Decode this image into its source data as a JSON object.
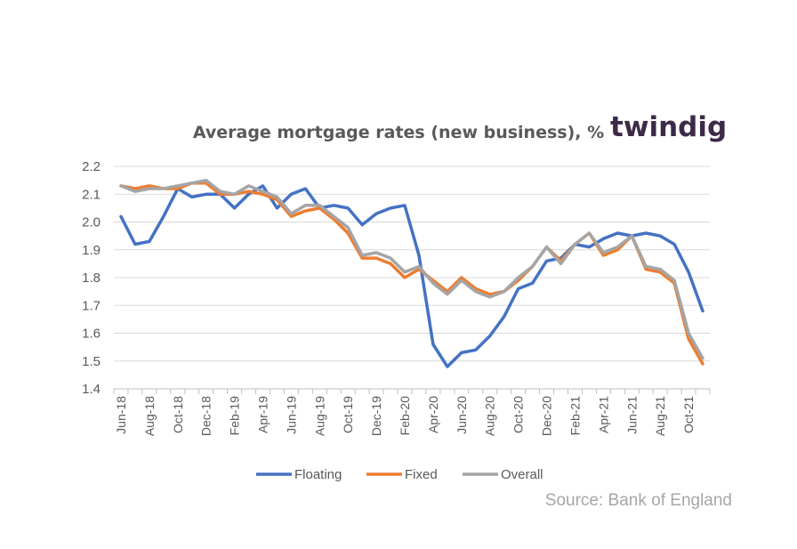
{
  "chart_data": {
    "type": "line",
    "title": "Average mortgage rates (new business), %",
    "brand": "twindig",
    "source": "Source: Bank of England",
    "xlabel": "",
    "ylabel": "",
    "ylim": [
      1.4,
      2.2
    ],
    "yticks": [
      "2.2",
      "2.1",
      "2.0",
      "1.9",
      "1.8",
      "1.7",
      "1.6",
      "1.5",
      "1.4"
    ],
    "grid": true,
    "legend_position": "bottom",
    "x": [
      "Jun-18",
      "Jul-18",
      "Aug-18",
      "Sep-18",
      "Oct-18",
      "Nov-18",
      "Dec-18",
      "Jan-19",
      "Feb-19",
      "Mar-19",
      "Apr-19",
      "May-19",
      "Jun-19",
      "Jul-19",
      "Aug-19",
      "Sep-19",
      "Oct-19",
      "Nov-19",
      "Dec-19",
      "Jan-20",
      "Feb-20",
      "Mar-20",
      "Apr-20",
      "May-20",
      "Jun-20",
      "Jul-20",
      "Aug-20",
      "Sep-20",
      "Oct-20",
      "Nov-20",
      "Dec-20",
      "Jan-21",
      "Feb-21",
      "Mar-21",
      "Apr-21",
      "May-21",
      "Jun-21",
      "Jul-21",
      "Aug-21",
      "Sep-21",
      "Oct-21",
      "Nov-21"
    ],
    "x_tick_labels": [
      "Jun-18",
      "Aug-18",
      "Oct-18",
      "Dec-18",
      "Feb-19",
      "Apr-19",
      "Jun-19",
      "Aug-19",
      "Oct-19",
      "Dec-19",
      "Feb-20",
      "Apr-20",
      "Jun-20",
      "Aug-20",
      "Oct-20",
      "Dec-20",
      "Feb-21",
      "Apr-21",
      "Jun-21",
      "Aug-21",
      "Oct-21"
    ],
    "series": [
      {
        "name": "Floating",
        "color": "#4472c4",
        "values": [
          2.02,
          1.92,
          1.93,
          2.02,
          2.12,
          2.09,
          2.1,
          2.1,
          2.05,
          2.1,
          2.13,
          2.05,
          2.1,
          2.12,
          2.05,
          2.06,
          2.05,
          1.99,
          2.03,
          2.05,
          2.06,
          1.88,
          1.56,
          1.48,
          1.53,
          1.54,
          1.59,
          1.66,
          1.76,
          1.78,
          1.86,
          1.87,
          1.92,
          1.91,
          1.94,
          1.96,
          1.95,
          1.96,
          1.95,
          1.92,
          1.82,
          1.68
        ]
      },
      {
        "name": "Fixed",
        "color": "#ed7d31",
        "values": [
          2.13,
          2.12,
          2.13,
          2.12,
          2.12,
          2.14,
          2.14,
          2.1,
          2.1,
          2.11,
          2.1,
          2.08,
          2.02,
          2.04,
          2.05,
          2.01,
          1.96,
          1.87,
          1.87,
          1.85,
          1.8,
          1.83,
          1.79,
          1.75,
          1.8,
          1.76,
          1.74,
          1.75,
          1.79,
          1.84,
          1.91,
          1.86,
          1.92,
          1.96,
          1.88,
          1.9,
          1.95,
          1.83,
          1.82,
          1.78,
          1.58,
          1.49
        ]
      },
      {
        "name": "Overall",
        "color": "#a5a5a5",
        "values": [
          2.13,
          2.11,
          2.12,
          2.12,
          2.13,
          2.14,
          2.15,
          2.11,
          2.1,
          2.13,
          2.11,
          2.09,
          2.03,
          2.06,
          2.06,
          2.02,
          1.98,
          1.88,
          1.89,
          1.87,
          1.82,
          1.84,
          1.78,
          1.74,
          1.79,
          1.75,
          1.73,
          1.75,
          1.8,
          1.84,
          1.91,
          1.85,
          1.92,
          1.96,
          1.89,
          1.91,
          1.95,
          1.84,
          1.83,
          1.79,
          1.6,
          1.51
        ]
      }
    ]
  }
}
